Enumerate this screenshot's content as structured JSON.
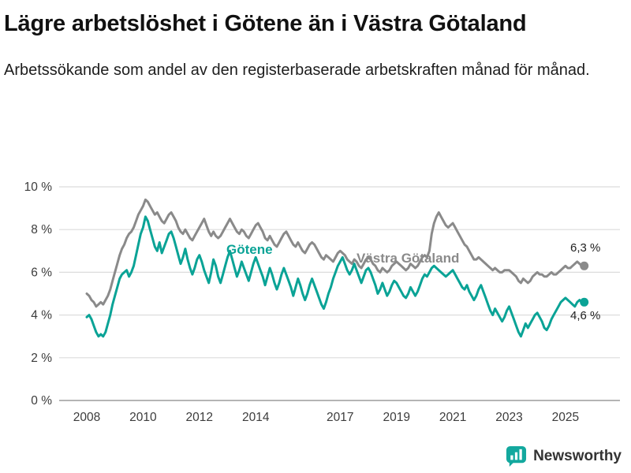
{
  "title": "Lägre arbetslöshet i Götene än i Västra Götaland",
  "subtitle": "Arbetssökande som andel av den registerbaserade arbetskraften månad för månad.",
  "footer": {
    "brand": "Newsworthy"
  },
  "colors": {
    "gotene": "#0aa396",
    "vastra_gotaland": "#8a8a8a",
    "grid": "#dcdcdc",
    "axis": "#9b9b9b",
    "brand_teal": "#13a89e",
    "text": "#1a1a1a"
  },
  "chart_data": {
    "type": "line",
    "title": "Lägre arbetslöshet i Götene än i Västra Götaland",
    "subtitle": "Arbetssökande som andel av den registerbaserade arbetskraften månad för månad.",
    "frequency": "monthly",
    "x_start_year": 2008,
    "x_end": "2025 (september)",
    "xticks": [
      2008,
      2010,
      2012,
      2014,
      2017,
      2019,
      2021,
      2023,
      2025
    ],
    "ylim": [
      0,
      10
    ],
    "yticks": [
      "0 %",
      "2 %",
      "4 %",
      "6 %",
      "8 %",
      "10 %"
    ],
    "grid": true,
    "legend_position": "inline-labels",
    "series": [
      {
        "name": "Götene",
        "color": "#0aa396",
        "end_label": "4,6 %",
        "end_value": 4.6,
        "values": [
          3.9,
          4.0,
          3.8,
          3.5,
          3.2,
          3.0,
          3.1,
          3.0,
          3.2,
          3.6,
          4.0,
          4.5,
          4.9,
          5.3,
          5.7,
          5.9,
          6.0,
          6.1,
          5.8,
          6.0,
          6.3,
          6.8,
          7.3,
          7.8,
          8.1,
          8.6,
          8.4,
          8.0,
          7.6,
          7.2,
          7.0,
          7.4,
          6.9,
          7.2,
          7.5,
          7.8,
          7.9,
          7.6,
          7.2,
          6.8,
          6.4,
          6.7,
          7.1,
          6.6,
          6.2,
          5.9,
          6.2,
          6.6,
          6.8,
          6.5,
          6.1,
          5.8,
          5.5,
          6.0,
          6.6,
          6.3,
          5.8,
          5.5,
          5.9,
          6.3,
          6.7,
          7.0,
          6.6,
          6.2,
          5.8,
          6.1,
          6.5,
          6.2,
          5.9,
          5.6,
          6.0,
          6.4,
          6.7,
          6.4,
          6.1,
          5.8,
          5.4,
          5.8,
          6.2,
          5.9,
          5.5,
          5.2,
          5.5,
          5.9,
          6.2,
          5.9,
          5.6,
          5.3,
          4.9,
          5.3,
          5.7,
          5.4,
          5.0,
          4.7,
          5.0,
          5.4,
          5.7,
          5.4,
          5.1,
          4.8,
          4.5,
          4.3,
          4.6,
          5.0,
          5.3,
          5.7,
          6.0,
          6.3,
          6.5,
          6.7,
          6.4,
          6.1,
          5.9,
          6.1,
          6.4,
          6.1,
          5.8,
          5.5,
          5.8,
          6.1,
          6.2,
          6.0,
          5.7,
          5.4,
          5.0,
          5.2,
          5.5,
          5.2,
          4.9,
          5.1,
          5.4,
          5.6,
          5.5,
          5.3,
          5.1,
          4.9,
          4.8,
          5.0,
          5.3,
          5.1,
          4.9,
          5.1,
          5.4,
          5.7,
          5.9,
          5.8,
          6.0,
          6.2,
          6.3,
          6.2,
          6.1,
          6.0,
          5.9,
          5.8,
          5.9,
          6.0,
          6.1,
          5.9,
          5.7,
          5.5,
          5.3,
          5.2,
          5.4,
          5.1,
          4.9,
          4.7,
          4.9,
          5.2,
          5.4,
          5.1,
          4.8,
          4.5,
          4.2,
          4.0,
          4.3,
          4.1,
          3.9,
          3.7,
          3.9,
          4.2,
          4.4,
          4.1,
          3.8,
          3.5,
          3.2,
          3.0,
          3.3,
          3.6,
          3.4,
          3.6,
          3.8,
          4.0,
          4.1,
          3.9,
          3.7,
          3.4,
          3.3,
          3.5,
          3.8,
          4.0,
          4.2,
          4.4,
          4.6,
          4.7,
          4.8,
          4.7,
          4.6,
          4.5,
          4.4,
          4.6,
          4.7,
          4.6,
          4.6
        ]
      },
      {
        "name": "Västra Götaland",
        "color": "#8a8a8a",
        "end_label": "6,3 %",
        "end_value": 6.3,
        "values": [
          5.0,
          4.9,
          4.7,
          4.6,
          4.4,
          4.5,
          4.6,
          4.5,
          4.7,
          4.9,
          5.2,
          5.6,
          6.0,
          6.4,
          6.8,
          7.1,
          7.3,
          7.6,
          7.8,
          7.9,
          8.1,
          8.4,
          8.7,
          8.9,
          9.1,
          9.4,
          9.3,
          9.1,
          8.9,
          8.7,
          8.8,
          8.6,
          8.4,
          8.3,
          8.5,
          8.7,
          8.8,
          8.6,
          8.4,
          8.1,
          7.9,
          7.8,
          8.0,
          7.8,
          7.6,
          7.5,
          7.7,
          7.9,
          8.1,
          8.3,
          8.5,
          8.2,
          7.9,
          7.7,
          7.9,
          7.7,
          7.6,
          7.7,
          7.9,
          8.1,
          8.3,
          8.5,
          8.3,
          8.1,
          7.9,
          7.8,
          8.0,
          7.9,
          7.7,
          7.6,
          7.8,
          8.0,
          8.2,
          8.3,
          8.1,
          7.9,
          7.6,
          7.5,
          7.7,
          7.5,
          7.3,
          7.2,
          7.4,
          7.6,
          7.8,
          7.9,
          7.7,
          7.5,
          7.3,
          7.2,
          7.4,
          7.2,
          7.0,
          6.9,
          7.1,
          7.3,
          7.4,
          7.3,
          7.1,
          6.9,
          6.7,
          6.6,
          6.8,
          6.7,
          6.6,
          6.5,
          6.7,
          6.9,
          7.0,
          6.9,
          6.8,
          6.6,
          6.5,
          6.4,
          6.6,
          6.5,
          6.3,
          6.2,
          6.4,
          6.6,
          6.7,
          6.6,
          6.4,
          6.3,
          6.1,
          6.0,
          6.2,
          6.1,
          6.0,
          6.1,
          6.3,
          6.4,
          6.5,
          6.4,
          6.3,
          6.2,
          6.1,
          6.2,
          6.4,
          6.3,
          6.2,
          6.3,
          6.5,
          6.7,
          6.8,
          6.7,
          7.0,
          7.8,
          8.3,
          8.6,
          8.8,
          8.6,
          8.4,
          8.2,
          8.1,
          8.2,
          8.3,
          8.1,
          7.9,
          7.7,
          7.5,
          7.3,
          7.2,
          7.0,
          6.8,
          6.6,
          6.6,
          6.7,
          6.6,
          6.5,
          6.4,
          6.3,
          6.2,
          6.1,
          6.2,
          6.1,
          6.0,
          6.0,
          6.1,
          6.1,
          6.1,
          6.0,
          5.9,
          5.8,
          5.6,
          5.5,
          5.7,
          5.6,
          5.5,
          5.6,
          5.8,
          5.9,
          6.0,
          5.9,
          5.9,
          5.8,
          5.8,
          5.9,
          6.0,
          5.9,
          5.9,
          6.0,
          6.1,
          6.2,
          6.3,
          6.2,
          6.2,
          6.3,
          6.4,
          6.5,
          6.4,
          6.3,
          6.3
        ]
      }
    ]
  }
}
